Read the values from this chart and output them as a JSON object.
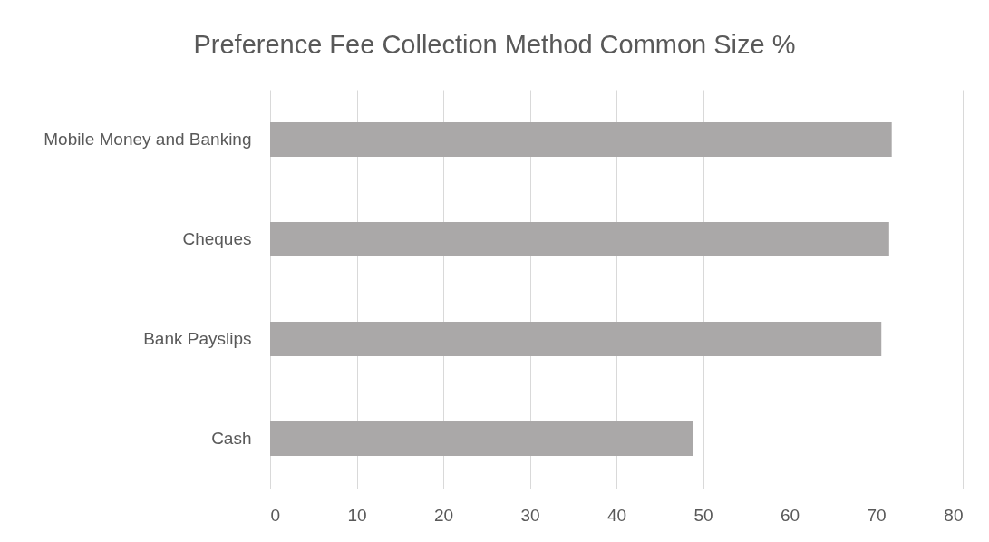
{
  "chart_data": {
    "type": "bar",
    "orientation": "horizontal",
    "title": "Preference Fee Collection Method Common Size %",
    "categories": [
      "Mobile Money and Banking",
      "Cheques",
      "Bank Payslips",
      "Cash"
    ],
    "values": [
      71.8,
      71.5,
      70.6,
      48.8
    ],
    "color": "#aaa8a8",
    "xlim": [
      0,
      80
    ],
    "xticks": [
      0,
      10,
      20,
      30,
      40,
      50,
      60,
      70,
      80
    ],
    "grid": "x"
  }
}
